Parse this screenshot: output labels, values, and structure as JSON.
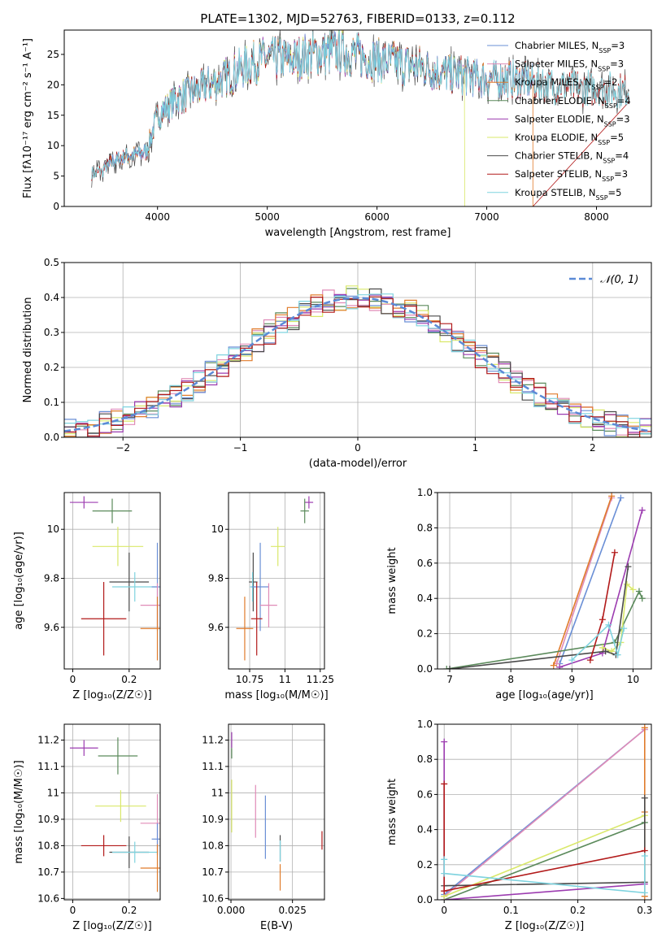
{
  "figure": {
    "title": "PLATE=1302, MJD=52763, FIBERID=0133, z=0.112"
  },
  "model_colors": {
    "Chabrier MILES": "#6a8fd6",
    "Salpeter MILES": "#e08bb7",
    "Kroupa MILES": "#e07b2b",
    "Chabrier ELODIE": "#5b8a5b",
    "Salpeter ELODIE": "#9c3cb0",
    "Kroupa ELODIE": "#d9e86a",
    "Chabrier STELIB": "#4a4a4a",
    "Salpeter STELIB": "#b21a1a",
    "Kroupa STELIB": "#7fd3df"
  },
  "chart_data": [
    {
      "id": "spectrum",
      "type": "line",
      "title": "",
      "xlabel": "wavelength [Angstrom, rest frame]",
      "ylabel": "Flux [fλ10⁻¹⁷ erg cm⁻² s⁻¹ A⁻¹]",
      "xlim": [
        3150,
        8500
      ],
      "ylim": [
        0,
        29
      ],
      "xticks": [
        4000,
        5000,
        6000,
        7000,
        8000
      ],
      "yticks": [
        0,
        5,
        10,
        15,
        20,
        25
      ],
      "grid": false,
      "legend_position": "top-right",
      "legend": [
        {
          "label": "Chabrier MILES, N",
          "sub": "SSP",
          "suffix": "=3",
          "color": "#6a8fd6"
        },
        {
          "label": "Salpeter MILES, N",
          "sub": "SSP",
          "suffix": "=3",
          "color": "#e08bb7"
        },
        {
          "label": "Kroupa MILES, N",
          "sub": "SSP",
          "suffix": "=2",
          "color": "#e07b2b"
        },
        {
          "label": "Chabrier ELODIE, N",
          "sub": "SSP",
          "suffix": "=4",
          "color": "#5b8a5b"
        },
        {
          "label": "Salpeter ELODIE, N",
          "sub": "SSP",
          "suffix": "=3",
          "color": "#9c3cb0"
        },
        {
          "label": "Kroupa ELODIE, N",
          "sub": "SSP",
          "suffix": "=5",
          "color": "#d9e86a"
        },
        {
          "label": "Chabrier STELIB, N",
          "sub": "SSP",
          "suffix": "=4",
          "color": "#4a4a4a"
        },
        {
          "label": "Salpeter STELIB, N",
          "sub": "SSP",
          "suffix": "=3",
          "color": "#b21a1a"
        },
        {
          "label": "Kroupa STELIB, N",
          "sub": "SSP",
          "suffix": "=5",
          "color": "#7fd3df"
        }
      ],
      "continuum": [
        [
          3400,
          5.5
        ],
        [
          3500,
          6.0
        ],
        [
          3600,
          7.5
        ],
        [
          3700,
          8.0
        ],
        [
          3800,
          8.5
        ],
        [
          3900,
          9.0
        ],
        [
          4000,
          15.0
        ],
        [
          4200,
          18.0
        ],
        [
          4400,
          19.5
        ],
        [
          4600,
          21.0
        ],
        [
          4800,
          23.0
        ],
        [
          5000,
          24.5
        ],
        [
          5200,
          24.0
        ],
        [
          5400,
          25.0
        ],
        [
          5600,
          25.5
        ],
        [
          5800,
          25.0
        ],
        [
          6000,
          24.0
        ],
        [
          6200,
          23.5
        ],
        [
          6400,
          23.0
        ],
        [
          6600,
          22.0
        ],
        [
          6800,
          21.5
        ],
        [
          7000,
          21.0
        ],
        [
          7200,
          21.0
        ],
        [
          7400,
          20.5
        ],
        [
          7600,
          20.0
        ],
        [
          7800,
          19.5
        ],
        [
          8000,
          19.5
        ],
        [
          8200,
          19.0
        ],
        [
          8300,
          19.0
        ]
      ],
      "model_ranges": [
        {
          "model": "Chabrier MILES",
          "x": [
            3500,
            7420
          ]
        },
        {
          "model": "Salpeter MILES",
          "x": [
            3500,
            7420
          ]
        },
        {
          "model": "Kroupa MILES",
          "x": [
            3500,
            7420
          ]
        },
        {
          "model": "Chabrier ELODIE",
          "x": [
            3900,
            6800
          ]
        },
        {
          "model": "Salpeter ELODIE",
          "x": [
            3900,
            6800
          ]
        },
        {
          "model": "Kroupa ELODIE",
          "x": [
            3900,
            6800
          ]
        },
        {
          "model": "Chabrier STELIB",
          "x": [
            3400,
            8300
          ]
        },
        {
          "model": "Salpeter STELIB",
          "x": [
            3400,
            8300
          ]
        },
        {
          "model": "Kroupa STELIB",
          "x": [
            3400,
            8300
          ]
        }
      ]
    },
    {
      "id": "residuals",
      "type": "step-histogram",
      "xlabel": "(data-model)/error",
      "ylabel": "Normed distribution",
      "xlim": [
        -2.5,
        2.5
      ],
      "ylim": [
        0,
        0.5
      ],
      "xticks": [
        -2,
        -1,
        0,
        1,
        2
      ],
      "xtick_labels": [
        "−2",
        "−1",
        "0",
        "1",
        "2"
      ],
      "yticks": [
        0.0,
        0.1,
        0.2,
        0.3,
        0.4,
        0.5
      ],
      "grid": true,
      "legend_position": "top-right",
      "reference_label": "𝒩(0, 1)",
      "reference_color": "#5b8ad6",
      "bin_width": 0.1
    },
    {
      "id": "age-vs-Z",
      "type": "errorbar",
      "xlabel": "Z [log₁₀(Z/Z☉)]",
      "ylabel": "age  [log₁₀(age/yr)]",
      "xlim": [
        -0.03,
        0.31
      ],
      "ylim": [
        9.43,
        10.15
      ],
      "xticks": [
        0.0,
        0.2
      ],
      "yticks": [
        9.6,
        9.8,
        10.0
      ],
      "grid": true,
      "points": [
        {
          "model": "Salpeter ELODIE",
          "x": 0.04,
          "y": 10.11,
          "xerr": 0.05,
          "yerr": 0.025
        },
        {
          "model": "Chabrier ELODIE",
          "x": 0.14,
          "y": 10.075,
          "xerr": 0.07,
          "yerr": 0.05
        },
        {
          "model": "Kroupa ELODIE",
          "x": 0.16,
          "y": 9.93,
          "xerr": 0.09,
          "yerr": 0.08
        },
        {
          "model": "Chabrier STELIB",
          "x": 0.2,
          "y": 9.785,
          "xerr": 0.07,
          "yerr": 0.12
        },
        {
          "model": "Kroupa STELIB",
          "x": 0.22,
          "y": 9.765,
          "xerr": 0.08,
          "yerr": 0.06
        },
        {
          "model": "Chabrier MILES",
          "x": 0.3,
          "y": 9.765,
          "xerr": 0.02,
          "yerr": 0.18
        },
        {
          "model": "Salpeter MILES",
          "x": 0.3,
          "y": 9.69,
          "xerr": 0.06,
          "yerr": 0.09
        },
        {
          "model": "Salpeter STELIB",
          "x": 0.11,
          "y": 9.635,
          "xerr": 0.08,
          "yerr": 0.15
        },
        {
          "model": "Kroupa MILES",
          "x": 0.3,
          "y": 9.595,
          "xerr": 0.06,
          "yerr": 0.13
        }
      ]
    },
    {
      "id": "age-vs-mass",
      "type": "errorbar",
      "xlabel": "mass [log₁₀(M/M☉)]",
      "ylabel": "",
      "xlim": [
        10.6,
        11.28
      ],
      "ylim": [
        9.43,
        10.15
      ],
      "xticks": [
        10.75,
        11.0,
        11.25
      ],
      "yticks": [
        9.6,
        9.8,
        10.0
      ],
      "grid": true,
      "points": [
        {
          "model": "Salpeter ELODIE",
          "x": 11.17,
          "y": 10.11,
          "xerr": 0.03,
          "yerr": 0.025
        },
        {
          "model": "Chabrier ELODIE",
          "x": 11.14,
          "y": 10.075,
          "xerr": 0.03,
          "yerr": 0.05
        },
        {
          "model": "Kroupa ELODIE",
          "x": 10.95,
          "y": 9.93,
          "xerr": 0.05,
          "yerr": 0.08
        },
        {
          "model": "Chabrier STELIB",
          "x": 10.775,
          "y": 9.785,
          "xerr": 0.03,
          "yerr": 0.12
        },
        {
          "model": "Kroupa STELIB",
          "x": 10.77,
          "y": 9.765,
          "xerr": 0.02,
          "yerr": 0.06
        },
        {
          "model": "Chabrier MILES",
          "x": 10.825,
          "y": 9.765,
          "xerr": 0.06,
          "yerr": 0.18
        },
        {
          "model": "Salpeter MILES",
          "x": 10.885,
          "y": 9.69,
          "xerr": 0.06,
          "yerr": 0.09
        },
        {
          "model": "Salpeter STELIB",
          "x": 10.8,
          "y": 9.635,
          "xerr": 0.04,
          "yerr": 0.15
        },
        {
          "model": "Kroupa MILES",
          "x": 10.715,
          "y": 9.595,
          "xerr": 0.06,
          "yerr": 0.13
        }
      ]
    },
    {
      "id": "weight-vs-age",
      "type": "line",
      "xlabel": "age  [log₁₀(age/yr)]",
      "ylabel": "mass weight",
      "xlim": [
        6.8,
        10.3
      ],
      "ylim": [
        0,
        1
      ],
      "xticks": [
        7,
        8,
        9,
        10
      ],
      "yticks": [
        0.0,
        0.2,
        0.4,
        0.6,
        0.8,
        1.0
      ],
      "grid": true,
      "series": [
        {
          "model": "Chabrier MILES",
          "x": [
            8.8,
            9.8
          ],
          "y": [
            0.03,
            0.97
          ]
        },
        {
          "model": "Salpeter MILES",
          "x": [
            8.75,
            9.65
          ],
          "y": [
            0.03,
            0.97
          ]
        },
        {
          "model": "Kroupa MILES",
          "x": [
            8.7,
            9.65
          ],
          "y": [
            0.02,
            0.98
          ]
        },
        {
          "model": "Chabrier ELODIE",
          "x": [
            6.95,
            9.7,
            10.1,
            10.15
          ],
          "y": [
            0.0,
            0.15,
            0.44,
            0.4
          ]
        },
        {
          "model": "Salpeter ELODIE",
          "x": [
            8.8,
            9.5,
            10.15
          ],
          "y": [
            0.01,
            0.09,
            0.9
          ]
        },
        {
          "model": "Kroupa ELODIE",
          "x": [
            9.5,
            9.65,
            9.8,
            9.9,
            10.0
          ],
          "y": [
            0.12,
            0.1,
            0.15,
            0.48,
            0.45
          ]
        },
        {
          "model": "Chabrier STELIB",
          "x": [
            7.0,
            9.55,
            9.72,
            9.92
          ],
          "y": [
            0.0,
            0.1,
            0.08,
            0.58
          ]
        },
        {
          "model": "Salpeter STELIB",
          "x": [
            9.3,
            9.5,
            9.7
          ],
          "y": [
            0.05,
            0.28,
            0.66
          ]
        },
        {
          "model": "Kroupa STELIB",
          "x": [
            9.0,
            9.6,
            9.75,
            9.85
          ],
          "y": [
            0.05,
            0.25,
            0.08,
            0.23
          ]
        }
      ]
    },
    {
      "id": "mass-vs-Z",
      "type": "errorbar",
      "xlabel": "Z [log₁₀(Z/Z☉)]",
      "ylabel": "mass [log₁₀(M/M☉)]",
      "xlim": [
        -0.03,
        0.31
      ],
      "ylim": [
        10.595,
        11.26
      ],
      "xticks": [
        0.0,
        0.2
      ],
      "yticks": [
        10.6,
        10.7,
        10.8,
        10.9,
        11.0,
        11.1,
        11.2
      ],
      "grid": true,
      "points": [
        {
          "model": "Salpeter ELODIE",
          "x": 0.04,
          "y": 11.17,
          "xerr": 0.05,
          "yerr": 0.03
        },
        {
          "model": "Chabrier ELODIE",
          "x": 0.16,
          "y": 11.14,
          "xerr": 0.07,
          "yerr": 0.07
        },
        {
          "model": "Kroupa ELODIE",
          "x": 0.17,
          "y": 10.95,
          "xerr": 0.09,
          "yerr": 0.06
        },
        {
          "model": "Salpeter MILES",
          "x": 0.3,
          "y": 10.885,
          "xerr": 0.06,
          "yerr": 0.11
        },
        {
          "model": "Chabrier MILES",
          "x": 0.3,
          "y": 10.825,
          "xerr": 0.02,
          "yerr": 0.06
        },
        {
          "model": "Salpeter STELIB",
          "x": 0.11,
          "y": 10.8,
          "xerr": 0.08,
          "yerr": 0.04
        },
        {
          "model": "Chabrier STELIB",
          "x": 0.2,
          "y": 10.775,
          "xerr": 0.07,
          "yerr": 0.06
        },
        {
          "model": "Kroupa STELIB",
          "x": 0.22,
          "y": 10.775,
          "xerr": 0.08,
          "yerr": 0.04
        },
        {
          "model": "Kroupa MILES",
          "x": 0.3,
          "y": 10.715,
          "xerr": 0.06,
          "yerr": 0.09
        }
      ]
    },
    {
      "id": "mass-vs-EBV",
      "type": "errorbar",
      "xlabel": "E(B-V)",
      "ylabel": "",
      "xlim": [
        -0.001,
        0.038
      ],
      "ylim": [
        10.595,
        11.26
      ],
      "xticks": [
        0.0,
        0.025
      ],
      "xtick_labels": [
        "0.000",
        "0.025"
      ],
      "yticks": [
        10.6,
        10.7,
        10.8,
        10.9,
        11.0,
        11.1,
        11.2
      ],
      "grid": true,
      "points": [
        {
          "model": "Salpeter ELODIE",
          "x": 0.0003,
          "y": 11.2,
          "xerr": 0.0,
          "yerr": 0.03
        },
        {
          "model": "Chabrier ELODIE",
          "x": 0.0003,
          "y": 11.15,
          "xerr": 0.0,
          "yerr": 0.02
        },
        {
          "model": "Kroupa ELODIE",
          "x": 0.0003,
          "y": 10.95,
          "xerr": 0.0,
          "yerr": 0.1
        },
        {
          "model": "Salpeter MILES",
          "x": 0.01,
          "y": 10.93,
          "xerr": 0.0,
          "yerr": 0.1
        },
        {
          "model": "Chabrier MILES",
          "x": 0.014,
          "y": 10.87,
          "xerr": 0.0,
          "yerr": 0.12
        },
        {
          "model": "Chabrier STELIB",
          "x": 0.02,
          "y": 10.79,
          "xerr": 0.0,
          "yerr": 0.05
        },
        {
          "model": "Kroupa STELIB",
          "x": 0.02,
          "y": 10.78,
          "xerr": 0.0,
          "yerr": 0.04
        },
        {
          "model": "Kroupa MILES",
          "x": 0.02,
          "y": 10.68,
          "xerr": 0.0,
          "yerr": 0.05
        },
        {
          "model": "Salpeter STELIB",
          "x": 0.037,
          "y": 10.82,
          "xerr": 0.0,
          "yerr": 0.035
        }
      ]
    },
    {
      "id": "weight-vs-Z",
      "type": "line",
      "xlabel": "Z [log₁₀(Z/Z☉)]",
      "ylabel": "mass weight",
      "xlim": [
        -0.01,
        0.31
      ],
      "ylim": [
        0,
        1
      ],
      "xticks": [
        0.0,
        0.1,
        0.2,
        0.3
      ],
      "yticks": [
        0.0,
        0.2,
        0.4,
        0.6,
        0.8,
        1.0
      ],
      "grid": true,
      "series": [
        {
          "model": "Chabrier MILES",
          "x": [
            0.0,
            0.3
          ],
          "y": [
            0.03,
            0.97
          ]
        },
        {
          "model": "Salpeter MILES",
          "x": [
            0.0,
            0.3
          ],
          "y": [
            0.02,
            0.97
          ]
        },
        {
          "model": "Kroupa MILES",
          "x": [
            0.3,
            0.3,
            0.3
          ],
          "y": [
            0.02,
            0.5,
            0.98
          ]
        },
        {
          "model": "Chabrier ELODIE",
          "x": [
            0.0,
            0.3
          ],
          "y": [
            0.0,
            0.44
          ]
        },
        {
          "model": "Salpeter ELODIE",
          "x": [
            0.0,
            0.0,
            0.3
          ],
          "y": [
            0.9,
            0.0,
            0.09
          ]
        },
        {
          "model": "Kroupa ELODIE",
          "x": [
            0.0,
            0.3
          ],
          "y": [
            0.02,
            0.48
          ]
        },
        {
          "model": "Chabrier STELIB",
          "x": [
            0.0,
            0.3,
            0.3
          ],
          "y": [
            0.08,
            0.1,
            0.58
          ]
        },
        {
          "model": "Salpeter STELIB",
          "x": [
            0.0,
            0.0,
            0.3
          ],
          "y": [
            0.66,
            0.05,
            0.28
          ]
        },
        {
          "model": "Kroupa STELIB",
          "x": [
            0.0,
            0.0,
            0.3,
            0.3
          ],
          "y": [
            0.23,
            0.15,
            0.04,
            0.25
          ]
        }
      ]
    }
  ]
}
